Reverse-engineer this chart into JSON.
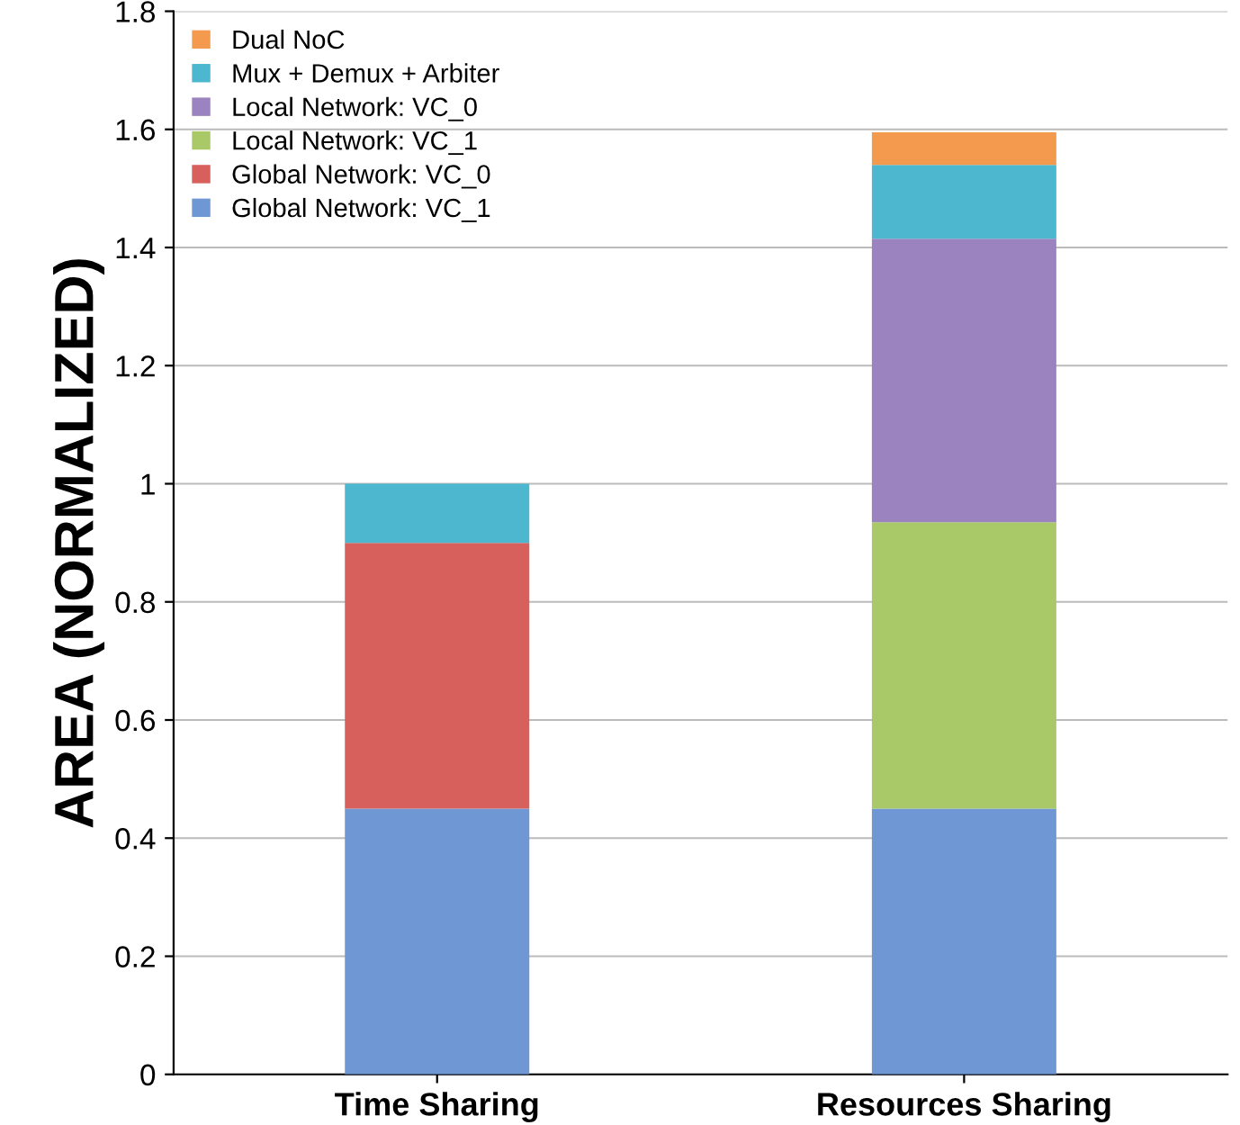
{
  "chart_data": {
    "type": "bar",
    "stacked": true,
    "ylabel": "AREA (NORMALIZED)",
    "categories": [
      "Time Sharing",
      "Resources Sharing"
    ],
    "series": [
      {
        "name": "Global Network: VC_1",
        "color": "#6f97d3",
        "values": [
          0.45,
          0.45
        ]
      },
      {
        "name": "Global Network: VC_0",
        "color": "#d75f5c",
        "values": [
          0.45,
          null
        ]
      },
      {
        "name": "Local Network: VC_1",
        "color": "#a9c868",
        "values": [
          null,
          0.485
        ]
      },
      {
        "name": "Local Network: VC_0",
        "color": "#9a83be",
        "values": [
          null,
          0.48
        ]
      },
      {
        "name": "Mux + Demux + Arbiter",
        "color": "#4cb7cf",
        "values": [
          0.1,
          0.125
        ]
      },
      {
        "name": "Dual NoC",
        "color": "#f39a4e",
        "values": [
          null,
          0.055
        ]
      }
    ],
    "ylim": [
      0,
      1.8
    ],
    "yticks": [
      0,
      0.2,
      0.4,
      0.6,
      0.8,
      1,
      1.2,
      1.4,
      1.6,
      1.8
    ],
    "grid": "y",
    "legend": "top left"
  }
}
